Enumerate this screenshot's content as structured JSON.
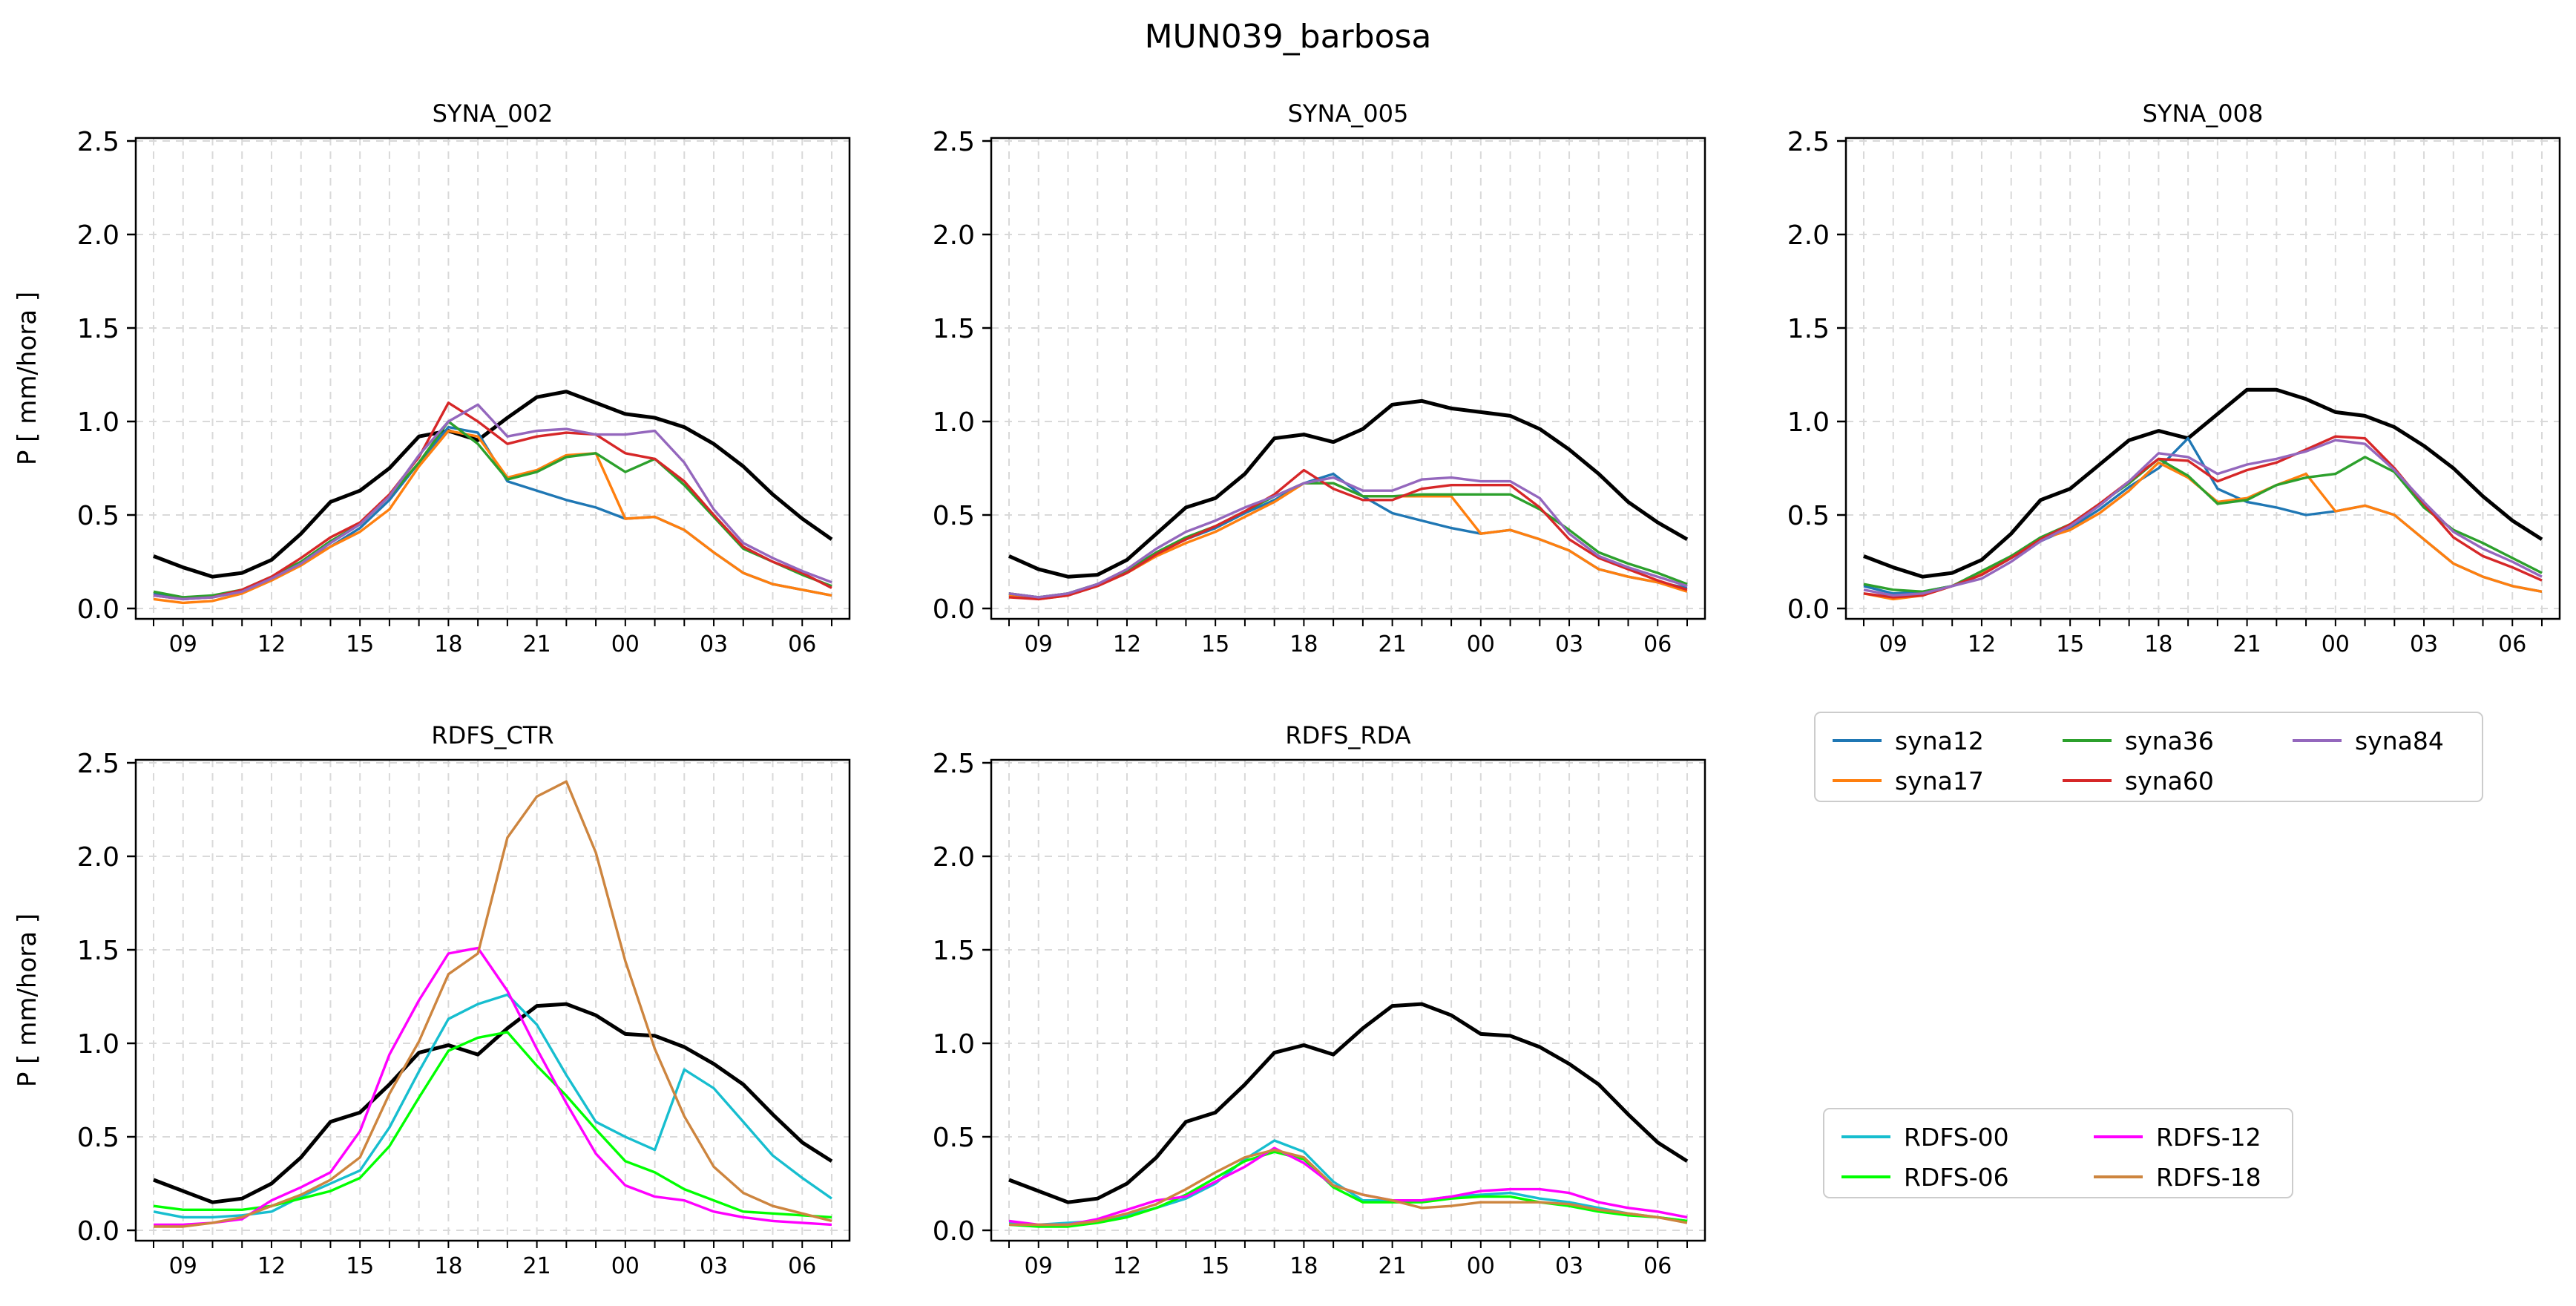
{
  "figure_title": "MUN039_barbosa",
  "colors": {
    "observed": "#000000",
    "syna12": "#1f77b4",
    "syna17": "#ff7f0e",
    "syna36": "#2ca02c",
    "syna60": "#d62728",
    "syna84": "#9467bd",
    "RDFS-00": "#17becf",
    "RDFS-06": "#00ff00",
    "RDFS-12": "#ff00ff",
    "RDFS-18": "#cd853f"
  },
  "chart_data": [
    {
      "type": "line",
      "title": "SYNA_002",
      "ylabel": "P [ mm/hora ]",
      "ylim": [
        0,
        2.5
      ],
      "yticks": [
        "0.0",
        "0.5",
        "1.0",
        "1.5",
        "2.0",
        "2.5"
      ],
      "xticks": [
        "09",
        "12",
        "15",
        "18",
        "21",
        "00",
        "03",
        "06"
      ],
      "grid": true,
      "series": [
        {
          "key": "observed",
          "values": [
            0.28,
            0.22,
            0.17,
            0.19,
            0.26,
            0.4,
            0.57,
            0.63,
            0.75,
            0.92,
            0.95,
            0.9,
            1.02,
            1.13,
            1.16,
            1.1,
            1.04,
            1.02,
            0.97,
            0.88,
            0.76,
            0.61,
            0.48,
            0.37
          ]
        },
        {
          "key": "syna12",
          "values": [
            0.08,
            0.06,
            0.06,
            0.09,
            0.15,
            0.24,
            0.33,
            0.43,
            0.58,
            0.78,
            0.97,
            0.94,
            0.68,
            0.63,
            0.58,
            0.54,
            0.48,
            0.49,
            0.42,
            0.3,
            0.19,
            0.13,
            0.1,
            0.07
          ]
        },
        {
          "key": "syna17",
          "values": [
            0.05,
            0.03,
            0.04,
            0.08,
            0.15,
            0.23,
            0.33,
            0.41,
            0.53,
            0.76,
            0.95,
            0.92,
            0.7,
            0.74,
            0.82,
            0.83,
            0.48,
            0.49,
            0.42,
            0.3,
            0.19,
            0.13,
            0.1,
            0.07
          ]
        },
        {
          "key": "syna36",
          "values": [
            0.09,
            0.06,
            0.07,
            0.1,
            0.17,
            0.25,
            0.36,
            0.45,
            0.6,
            0.78,
            1.0,
            0.88,
            0.69,
            0.73,
            0.81,
            0.83,
            0.73,
            0.8,
            0.66,
            0.49,
            0.32,
            0.25,
            0.18,
            0.12
          ]
        },
        {
          "key": "syna60",
          "values": [
            0.07,
            0.05,
            0.06,
            0.1,
            0.17,
            0.27,
            0.38,
            0.46,
            0.61,
            0.81,
            1.1,
            1.0,
            0.88,
            0.92,
            0.94,
            0.93,
            0.83,
            0.8,
            0.68,
            0.5,
            0.33,
            0.25,
            0.19,
            0.11
          ]
        },
        {
          "key": "syna84",
          "values": [
            0.07,
            0.05,
            0.06,
            0.09,
            0.16,
            0.24,
            0.35,
            0.45,
            0.6,
            0.82,
            1.0,
            1.09,
            0.92,
            0.95,
            0.96,
            0.93,
            0.93,
            0.95,
            0.78,
            0.53,
            0.35,
            0.27,
            0.2,
            0.14
          ]
        }
      ]
    },
    {
      "type": "line",
      "title": "SYNA_005",
      "ylim": [
        0,
        2.5
      ],
      "yticks": [
        "0.0",
        "0.5",
        "1.0",
        "1.5",
        "2.0",
        "2.5"
      ],
      "xticks": [
        "09",
        "12",
        "15",
        "18",
        "21",
        "00",
        "03",
        "06"
      ],
      "grid": true,
      "series": [
        {
          "key": "observed",
          "values": [
            0.28,
            0.21,
            0.17,
            0.18,
            0.26,
            0.4,
            0.54,
            0.59,
            0.72,
            0.91,
            0.93,
            0.89,
            0.96,
            1.09,
            1.11,
            1.07,
            1.05,
            1.03,
            0.96,
            0.85,
            0.72,
            0.57,
            0.46,
            0.37
          ]
        },
        {
          "key": "syna12",
          "values": [
            0.08,
            0.06,
            0.08,
            0.13,
            0.2,
            0.3,
            0.37,
            0.43,
            0.51,
            0.58,
            0.67,
            0.72,
            0.6,
            0.51,
            0.47,
            0.43,
            0.4,
            0.42,
            0.37,
            0.31,
            0.21,
            0.17,
            0.14,
            0.11
          ]
        },
        {
          "key": "syna17",
          "values": [
            0.07,
            0.05,
            0.07,
            0.12,
            0.19,
            0.28,
            0.35,
            0.41,
            0.49,
            0.57,
            0.67,
            0.67,
            0.6,
            0.6,
            0.6,
            0.6,
            0.4,
            0.42,
            0.37,
            0.31,
            0.21,
            0.17,
            0.14,
            0.09
          ]
        },
        {
          "key": "syna36",
          "values": [
            0.08,
            0.06,
            0.08,
            0.13,
            0.2,
            0.3,
            0.38,
            0.44,
            0.52,
            0.6,
            0.67,
            0.67,
            0.6,
            0.6,
            0.61,
            0.61,
            0.61,
            0.61,
            0.53,
            0.42,
            0.3,
            0.24,
            0.19,
            0.13
          ]
        },
        {
          "key": "syna60",
          "values": [
            0.06,
            0.05,
            0.07,
            0.12,
            0.19,
            0.29,
            0.37,
            0.44,
            0.52,
            0.61,
            0.74,
            0.64,
            0.58,
            0.58,
            0.64,
            0.66,
            0.66,
            0.66,
            0.54,
            0.37,
            0.27,
            0.21,
            0.15,
            0.1
          ]
        },
        {
          "key": "syna84",
          "values": [
            0.08,
            0.06,
            0.08,
            0.13,
            0.21,
            0.32,
            0.41,
            0.47,
            0.54,
            0.6,
            0.67,
            0.7,
            0.63,
            0.63,
            0.69,
            0.7,
            0.68,
            0.68,
            0.59,
            0.4,
            0.28,
            0.22,
            0.17,
            0.12
          ]
        }
      ]
    },
    {
      "type": "line",
      "title": "SYNA_008",
      "ylim": [
        0,
        2.5
      ],
      "yticks": [
        "0.0",
        "0.5",
        "1.0",
        "1.5",
        "2.0",
        "2.5"
      ],
      "xticks": [
        "09",
        "12",
        "15",
        "18",
        "21",
        "00",
        "03",
        "06"
      ],
      "grid": true,
      "series": [
        {
          "key": "observed",
          "values": [
            0.28,
            0.22,
            0.17,
            0.19,
            0.26,
            0.4,
            0.58,
            0.64,
            0.77,
            0.9,
            0.95,
            0.91,
            1.04,
            1.17,
            1.17,
            1.12,
            1.05,
            1.03,
            0.97,
            0.87,
            0.75,
            0.6,
            0.47,
            0.37
          ]
        },
        {
          "key": "syna12",
          "values": [
            0.12,
            0.08,
            0.09,
            0.12,
            0.18,
            0.27,
            0.36,
            0.43,
            0.53,
            0.65,
            0.75,
            0.91,
            0.64,
            0.57,
            0.54,
            0.5,
            0.52,
            0.55,
            0.5,
            0.37,
            0.24,
            0.17,
            0.12,
            0.09
          ]
        },
        {
          "key": "syna17",
          "values": [
            0.08,
            0.05,
            0.07,
            0.12,
            0.19,
            0.28,
            0.37,
            0.42,
            0.51,
            0.63,
            0.78,
            0.7,
            0.57,
            0.59,
            0.66,
            0.72,
            0.52,
            0.55,
            0.5,
            0.37,
            0.24,
            0.17,
            0.12,
            0.09
          ]
        },
        {
          "key": "syna36",
          "values": [
            0.13,
            0.1,
            0.09,
            0.12,
            0.2,
            0.28,
            0.38,
            0.45,
            0.56,
            0.67,
            0.8,
            0.71,
            0.56,
            0.58,
            0.66,
            0.7,
            0.72,
            0.81,
            0.73,
            0.54,
            0.42,
            0.35,
            0.27,
            0.19
          ]
        },
        {
          "key": "syna60",
          "values": [
            0.08,
            0.06,
            0.07,
            0.12,
            0.18,
            0.27,
            0.37,
            0.45,
            0.56,
            0.68,
            0.8,
            0.79,
            0.68,
            0.74,
            0.78,
            0.85,
            0.92,
            0.91,
            0.75,
            0.56,
            0.38,
            0.28,
            0.22,
            0.15
          ]
        },
        {
          "key": "syna84",
          "values": [
            0.1,
            0.07,
            0.08,
            0.12,
            0.16,
            0.25,
            0.36,
            0.44,
            0.55,
            0.68,
            0.83,
            0.81,
            0.72,
            0.77,
            0.8,
            0.84,
            0.9,
            0.88,
            0.74,
            0.57,
            0.41,
            0.32,
            0.25,
            0.17
          ]
        }
      ]
    },
    {
      "type": "line",
      "title": "RDFS_CTR",
      "ylabel": "P [ mm/hora ]",
      "ylim": [
        0,
        2.5
      ],
      "yticks": [
        "0.0",
        "0.5",
        "1.0",
        "1.5",
        "2.0",
        "2.5"
      ],
      "xticks": [
        "09",
        "12",
        "15",
        "18",
        "21",
        "00",
        "03",
        "06"
      ],
      "grid": true,
      "series": [
        {
          "key": "observed",
          "values": [
            0.27,
            0.21,
            0.15,
            0.17,
            0.25,
            0.39,
            0.58,
            0.63,
            0.78,
            0.95,
            0.99,
            0.94,
            1.08,
            1.2,
            1.21,
            1.15,
            1.05,
            1.04,
            0.98,
            0.89,
            0.78,
            0.62,
            0.47,
            0.37
          ]
        },
        {
          "key": "RDFS-00",
          "values": [
            0.1,
            0.07,
            0.07,
            0.08,
            0.1,
            0.18,
            0.25,
            0.32,
            0.55,
            0.85,
            1.13,
            1.21,
            1.26,
            1.1,
            0.83,
            0.58,
            0.5,
            0.43,
            0.86,
            0.76,
            0.58,
            0.4,
            0.28,
            0.17
          ]
        },
        {
          "key": "RDFS-06",
          "values": [
            0.13,
            0.11,
            0.11,
            0.11,
            0.13,
            0.17,
            0.21,
            0.28,
            0.45,
            0.71,
            0.96,
            1.03,
            1.06,
            0.88,
            0.72,
            0.54,
            0.37,
            0.31,
            0.22,
            0.16,
            0.1,
            0.09,
            0.08,
            0.07
          ]
        },
        {
          "key": "RDFS-12",
          "values": [
            0.03,
            0.03,
            0.04,
            0.06,
            0.16,
            0.23,
            0.31,
            0.53,
            0.94,
            1.23,
            1.48,
            1.51,
            1.28,
            0.97,
            0.68,
            0.41,
            0.24,
            0.18,
            0.16,
            0.1,
            0.07,
            0.05,
            0.04,
            0.03
          ]
        },
        {
          "key": "RDFS-18",
          "values": [
            0.02,
            0.02,
            0.04,
            0.07,
            0.13,
            0.19,
            0.27,
            0.39,
            0.73,
            1.01,
            1.37,
            1.48,
            2.1,
            2.32,
            2.4,
            2.02,
            1.44,
            0.97,
            0.61,
            0.34,
            0.2,
            0.13,
            0.09,
            0.05
          ]
        }
      ]
    },
    {
      "type": "line",
      "title": "RDFS_RDA",
      "ylim": [
        0,
        2.5
      ],
      "yticks": [
        "0.0",
        "0.5",
        "1.0",
        "1.5",
        "2.0",
        "2.5"
      ],
      "xticks": [
        "09",
        "12",
        "15",
        "18",
        "21",
        "00",
        "03",
        "06"
      ],
      "grid": true,
      "series": [
        {
          "key": "observed",
          "values": [
            0.27,
            0.21,
            0.15,
            0.17,
            0.25,
            0.39,
            0.58,
            0.63,
            0.78,
            0.95,
            0.99,
            0.94,
            1.08,
            1.2,
            1.21,
            1.15,
            1.05,
            1.04,
            0.98,
            0.89,
            0.78,
            0.62,
            0.47,
            0.37
          ]
        },
        {
          "key": "RDFS-00",
          "values": [
            0.04,
            0.03,
            0.04,
            0.05,
            0.08,
            0.12,
            0.17,
            0.25,
            0.38,
            0.48,
            0.42,
            0.26,
            0.16,
            0.16,
            0.16,
            0.18,
            0.19,
            0.2,
            0.17,
            0.15,
            0.12,
            0.09,
            0.07,
            0.05
          ]
        },
        {
          "key": "RDFS-06",
          "values": [
            0.03,
            0.02,
            0.02,
            0.04,
            0.07,
            0.12,
            0.19,
            0.28,
            0.37,
            0.42,
            0.38,
            0.23,
            0.15,
            0.15,
            0.15,
            0.17,
            0.18,
            0.18,
            0.15,
            0.13,
            0.1,
            0.08,
            0.07,
            0.05
          ]
        },
        {
          "key": "RDFS-12",
          "values": [
            0.05,
            0.03,
            0.03,
            0.06,
            0.11,
            0.16,
            0.18,
            0.26,
            0.34,
            0.44,
            0.36,
            0.24,
            0.19,
            0.16,
            0.16,
            0.18,
            0.21,
            0.22,
            0.22,
            0.2,
            0.15,
            0.12,
            0.1,
            0.07
          ]
        },
        {
          "key": "RDFS-18",
          "values": [
            0.03,
            0.03,
            0.03,
            0.05,
            0.09,
            0.14,
            0.22,
            0.31,
            0.39,
            0.43,
            0.39,
            0.24,
            0.19,
            0.16,
            0.12,
            0.13,
            0.15,
            0.15,
            0.15,
            0.14,
            0.11,
            0.09,
            0.07,
            0.04
          ]
        }
      ]
    }
  ],
  "legends": [
    {
      "entries": [
        "syna12",
        "syna17",
        "syna36",
        "syna60",
        "syna84"
      ]
    },
    {
      "entries": [
        "RDFS-00",
        "RDFS-06",
        "RDFS-12",
        "RDFS-18"
      ]
    }
  ]
}
